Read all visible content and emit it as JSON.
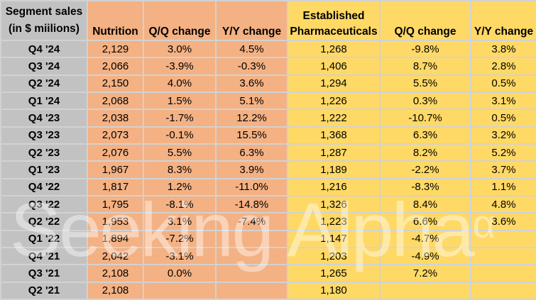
{
  "watermark": {
    "text": "Seeking Alpha",
    "superscript": "α"
  },
  "colors": {
    "nutrition_fill": "#F4B183",
    "pharma_fill": "#FFD966",
    "label_fill": "#C2C2C2",
    "grid_line": "#D2D2D2",
    "watermark": "rgba(255,255,255,0.42)"
  },
  "corner": {
    "line1": "Segment sales",
    "line2": "(in $ miilions)"
  },
  "header_cells": [
    {
      "id": "nutrition",
      "group": "nut",
      "lines": [
        "Nutrition"
      ]
    },
    {
      "id": "nutrition-qq",
      "group": "nut",
      "lines": [
        "Q/Q change"
      ]
    },
    {
      "id": "nutrition-yy",
      "group": "nut",
      "lines": [
        "Y/Y change"
      ]
    },
    {
      "id": "pharma",
      "group": "ph",
      "lines": [
        "Established",
        "Pharmaceuticals"
      ]
    },
    {
      "id": "pharma-qq",
      "group": "ph",
      "lines": [
        "Q/Q change"
      ]
    },
    {
      "id": "pharma-yy",
      "group": "ph",
      "lines": [
        "Y/Y change"
      ]
    }
  ],
  "chart_data": {
    "type": "table",
    "title": "Segment sales (in $ miilions)",
    "columns": [
      "Segment sales (in $ miilions)",
      "Nutrition",
      "Q/Q change",
      "Y/Y change",
      "Established Pharmaceuticals",
      "Q/Q change",
      "Y/Y change"
    ],
    "rows": [
      [
        "Q4 '24",
        "2,129",
        "3.0%",
        "4.5%",
        "1,268",
        "-9.8%",
        "3.8%"
      ],
      [
        "Q3 '24",
        "2,066",
        "-3.9%",
        "-0.3%",
        "1,406",
        "8.7%",
        "2.8%"
      ],
      [
        "Q2 '24",
        "2,150",
        "4.0%",
        "3.6%",
        "1,294",
        "5.5%",
        "0.5%"
      ],
      [
        "Q1 '24",
        "2,068",
        "1.5%",
        "5.1%",
        "1,226",
        "0.3%",
        "3.1%"
      ],
      [
        "Q4 '23",
        "2,038",
        "-1.7%",
        "12.2%",
        "1,222",
        "-10.7%",
        "0.5%"
      ],
      [
        "Q3 '23",
        "2,073",
        "-0.1%",
        "15.5%",
        "1,368",
        "6.3%",
        "3.2%"
      ],
      [
        "Q2 '23",
        "2,076",
        "5.5%",
        "6.3%",
        "1,287",
        "8.2%",
        "5.2%"
      ],
      [
        "Q1 '23",
        "1,967",
        "8.3%",
        "3.9%",
        "1,189",
        "-2.2%",
        "3.7%"
      ],
      [
        "Q4 '22",
        "1,817",
        "1.2%",
        "-11.0%",
        "1,216",
        "-8.3%",
        "1.1%"
      ],
      [
        "Q3 '22",
        "1,795",
        "-8.1%",
        "-14.8%",
        "1,326",
        "8.4%",
        "4.8%"
      ],
      [
        "Q2 '22",
        "1,953",
        "3.1%",
        "-7.4%",
        "1,223",
        "6.6%",
        "3.6%"
      ],
      [
        "Q1 '22",
        "1,894",
        "-7.2%",
        "",
        "1,147",
        "-4.7%",
        ""
      ],
      [
        "Q4 '21",
        "2,042",
        "-3.1%",
        "",
        "1,203",
        "-4.9%",
        ""
      ],
      [
        "Q3 '21",
        "2,108",
        "0.0%",
        "",
        "1,265",
        "7.2%",
        ""
      ],
      [
        "Q2 '21",
        "2,108",
        "",
        "",
        "1,180",
        "",
        ""
      ]
    ]
  }
}
